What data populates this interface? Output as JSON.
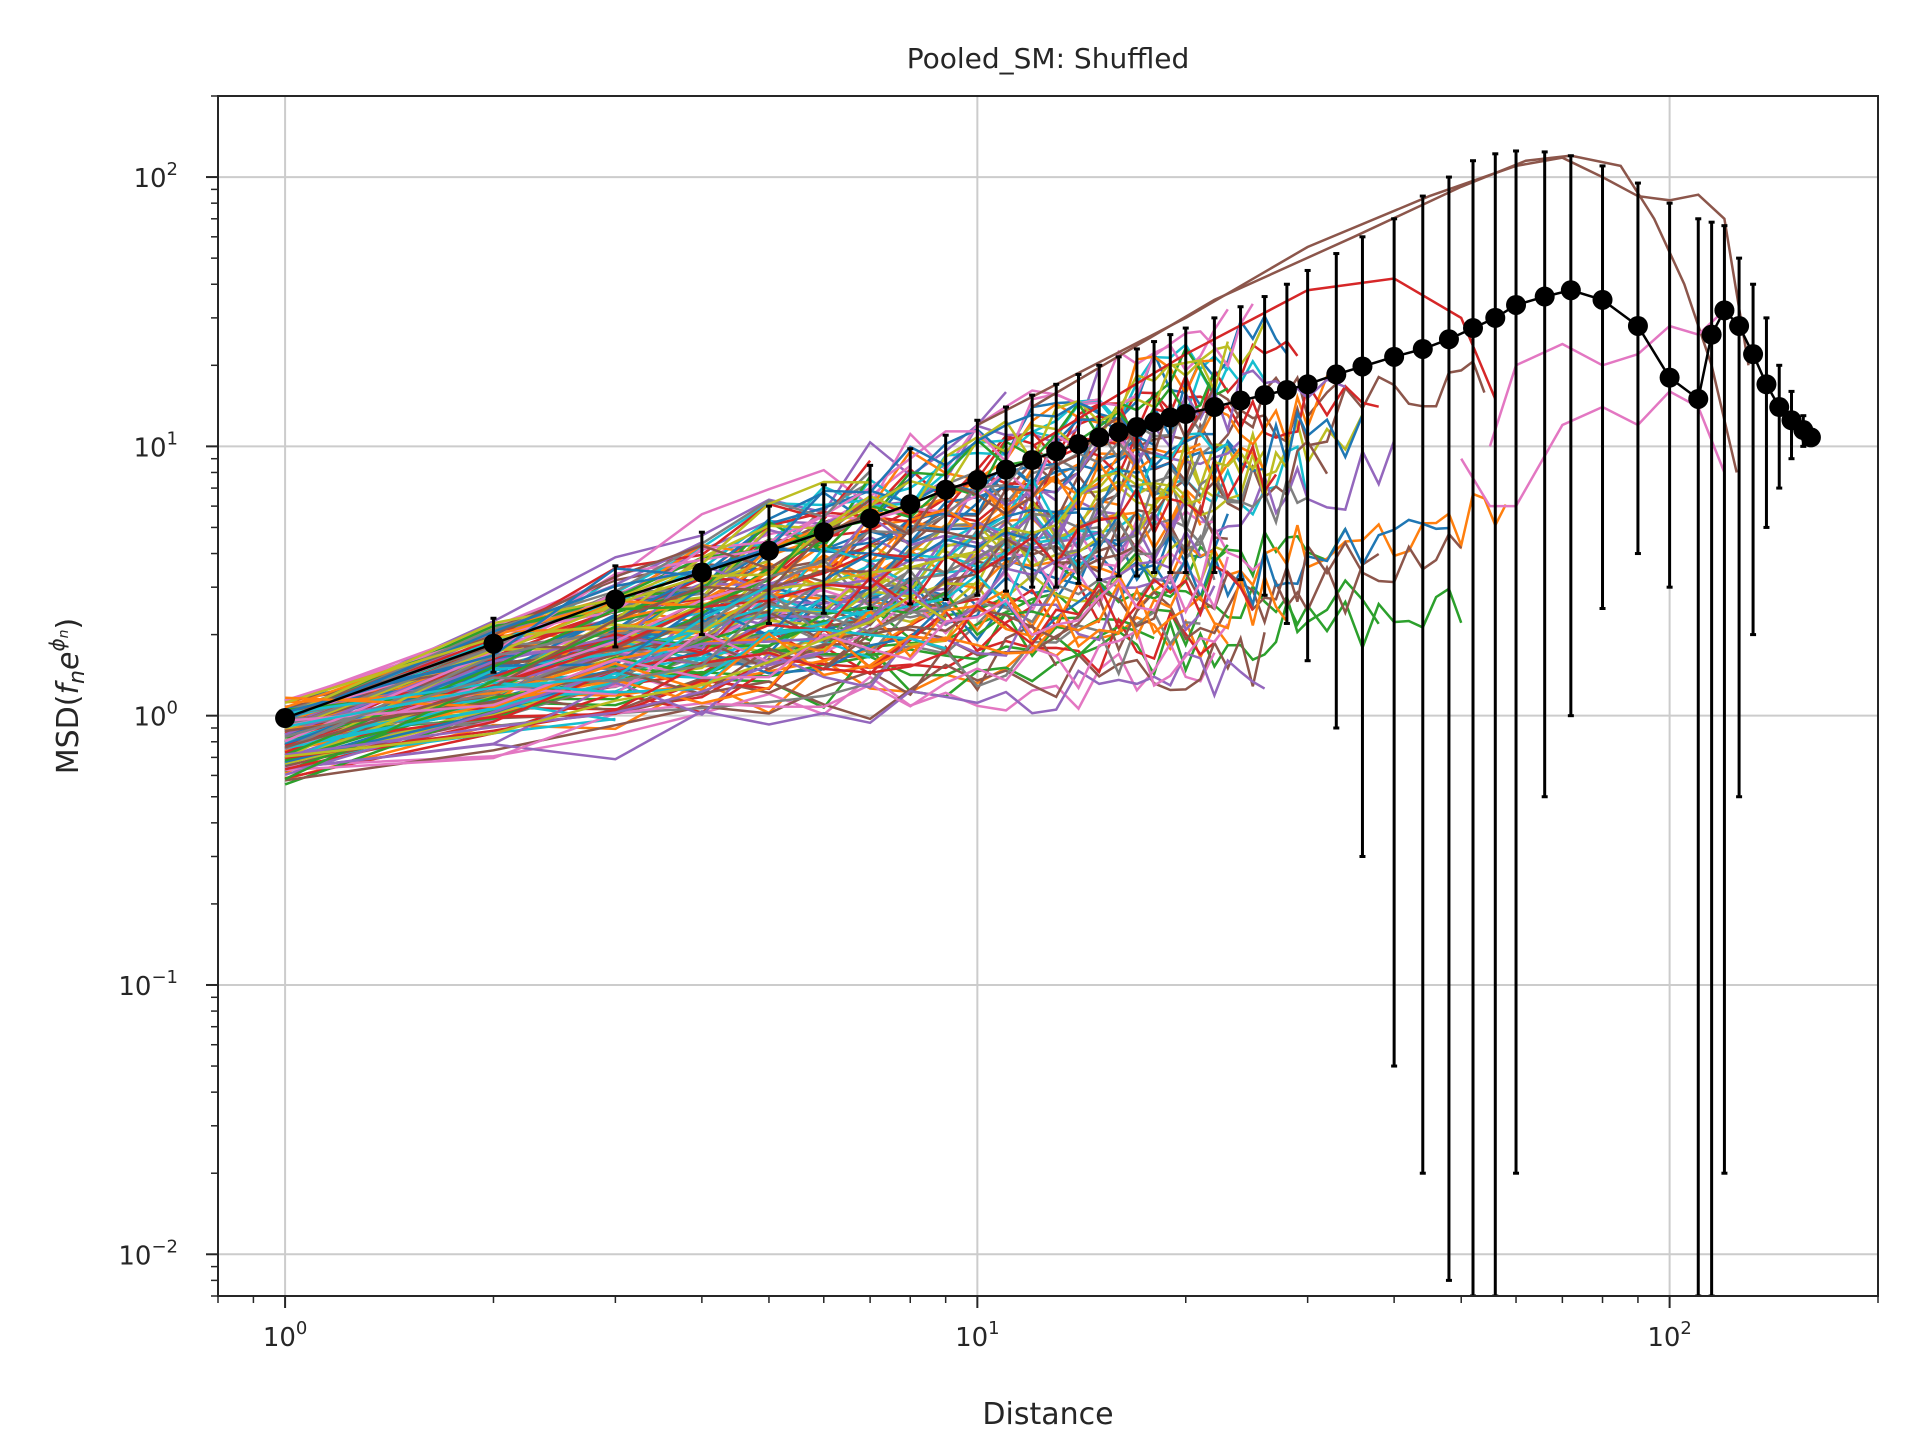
{
  "chart_data": {
    "type": "line",
    "title": "Pooled_SM: Shuffled",
    "xlabel": "Distance",
    "ylabel": "MSD(f_n e^{φ_n})",
    "ylabel_parts": {
      "prefix": "MSD(",
      "f": "f",
      "n1": "n",
      "e": "e",
      "phi": "ϕ",
      "n2": "n",
      "suffix": ")"
    },
    "xscale": "log",
    "yscale": "log",
    "xlim": [
      0.8,
      200
    ],
    "ylim": [
      0.007,
      200
    ],
    "grid": true,
    "x_ticks": [
      {
        "value": 1,
        "base": "10",
        "exp": "0"
      },
      {
        "value": 10,
        "base": "10",
        "exp": "1"
      },
      {
        "value": 100,
        "base": "10",
        "exp": "2"
      }
    ],
    "y_ticks": [
      {
        "value": 0.01,
        "base": "10",
        "exp": "−2"
      },
      {
        "value": 0.1,
        "base": "10",
        "exp": "−1"
      },
      {
        "value": 1,
        "base": "10",
        "exp": "0"
      },
      {
        "value": 10,
        "base": "10",
        "exp": "1"
      },
      {
        "value": 100,
        "base": "10",
        "exp": "2"
      }
    ],
    "colors": [
      "#1f77b4",
      "#ff7f0e",
      "#2ca02c",
      "#d62728",
      "#9467bd",
      "#8c564b",
      "#e377c2",
      "#7f7f7f",
      "#bcbd22",
      "#17becf"
    ],
    "mean_series": {
      "color": "#000000",
      "x": [
        1,
        2,
        3,
        4,
        5,
        6,
        7,
        8,
        9,
        10,
        11,
        12,
        13,
        14,
        15,
        16,
        17,
        18,
        19,
        20,
        22,
        24,
        26,
        28,
        30,
        33,
        36,
        40,
        44,
        48,
        52,
        56,
        60,
        66,
        72,
        80,
        90,
        100,
        110,
        115,
        120,
        126,
        132,
        138,
        144,
        150,
        156,
        160
      ],
      "y": [
        0.98,
        1.85,
        2.7,
        3.4,
        4.1,
        4.8,
        5.4,
        6.1,
        6.9,
        7.5,
        8.2,
        8.9,
        9.6,
        10.2,
        10.8,
        11.3,
        11.8,
        12.3,
        12.8,
        13.2,
        14.0,
        14.8,
        15.5,
        16.2,
        17.0,
        18.5,
        19.8,
        21.5,
        23.0,
        25.0,
        27.5,
        30.0,
        33.5,
        36.0,
        38.0,
        35.0,
        28.0,
        18.0,
        15.0,
        26.0,
        32.0,
        28.0,
        22.0,
        17.0,
        14.0,
        12.5,
        11.5,
        10.8
      ],
      "err_low": [
        0.94,
        1.45,
        1.8,
        2.0,
        2.2,
        2.4,
        2.5,
        2.6,
        2.7,
        2.8,
        2.9,
        3.0,
        3.0,
        3.1,
        3.2,
        3.3,
        3.3,
        3.4,
        3.4,
        3.4,
        3.4,
        3.2,
        2.8,
        2.2,
        1.6,
        0.9,
        0.3,
        0.05,
        0.02,
        0.008,
        0.007,
        0.007,
        0.02,
        0.5,
        1.0,
        2.5,
        4.0,
        3.0,
        0.007,
        0.007,
        0.02,
        0.5,
        2.0,
        5.0,
        7.0,
        9.0,
        10.0,
        10.3
      ],
      "err_high": [
        1.02,
        2.3,
        3.6,
        4.8,
        6.0,
        7.2,
        8.5,
        9.8,
        11.0,
        12.5,
        14.0,
        15.5,
        17.0,
        18.5,
        20.0,
        21.5,
        23.0,
        24.5,
        26.0,
        27.5,
        30.0,
        33.0,
        36.0,
        40.0,
        45.0,
        52.0,
        60.0,
        70.0,
        85.0,
        100.0,
        115.0,
        122.0,
        125.0,
        124.0,
        120.0,
        110.0,
        95.0,
        80.0,
        70.0,
        68.0,
        66.0,
        50.0,
        40.0,
        30.0,
        20.0,
        16.0,
        13.0,
        11.5
      ]
    }
  }
}
